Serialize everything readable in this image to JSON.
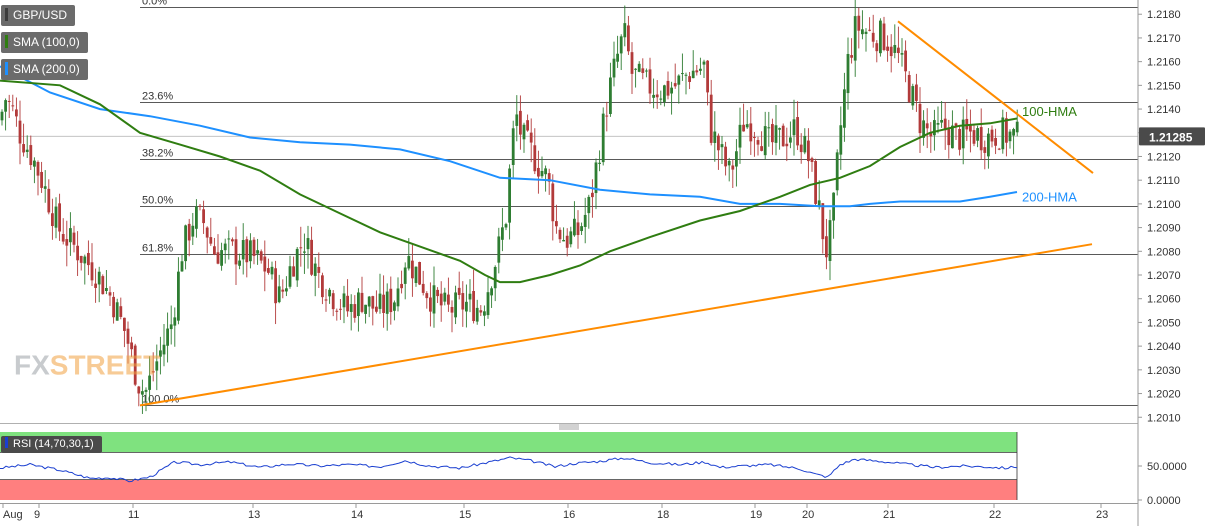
{
  "instrument": "GBP/USD",
  "legend": [
    {
      "label": "GBP/USD",
      "color": "#4a4a4a"
    },
    {
      "label": "SMA (100,0)",
      "color": "#2f7d11"
    },
    {
      "label": "SMA (200,0)",
      "color": "#1e90ff"
    }
  ],
  "last_price": "1.21285",
  "watermark": {
    "fx": "FX",
    "street": "STREET"
  },
  "chart_data": {
    "type": "candlestick",
    "ylim": [
      1.2008,
      1.2186
    ],
    "price_ticks": [
      "1.2180",
      "1.2170",
      "1.2160",
      "1.2150",
      "1.2140",
      "1.2130",
      "1.2120",
      "1.2110",
      "1.2100",
      "1.2090",
      "1.2080",
      "1.2070",
      "1.2060",
      "1.2050",
      "1.2040",
      "1.2030",
      "1.2020",
      "1.2010"
    ],
    "x_ticks": [
      "Aug",
      "9",
      "11",
      "13",
      "14",
      "15",
      "16",
      "18",
      "19",
      "20",
      "21",
      "22",
      "23"
    ],
    "fibonacci": [
      {
        "label": "0.0%",
        "price": 1.2183
      },
      {
        "label": "23.6%",
        "price": 1.2143
      },
      {
        "label": "38.2%",
        "price": 1.2119
      },
      {
        "label": "50.0%",
        "price": 1.2099
      },
      {
        "label": "61.8%",
        "price": 1.2079
      },
      {
        "label": "100.0%",
        "price": 1.2015
      }
    ],
    "annotations": {
      "hma100": "100-HMA",
      "hma200": "200-HMA"
    },
    "close_anchors": [
      [
        0,
        1.2135
      ],
      [
        5,
        1.2145
      ],
      [
        12,
        1.214
      ],
      [
        20,
        1.213
      ],
      [
        32,
        1.212
      ],
      [
        42,
        1.211
      ],
      [
        58,
        1.209
      ],
      [
        78,
        1.208
      ],
      [
        98,
        1.207
      ],
      [
        112,
        1.206
      ],
      [
        126,
        1.2045
      ],
      [
        138,
        1.2025
      ],
      [
        145,
        1.202
      ],
      [
        158,
        1.2035
      ],
      [
        172,
        1.205
      ],
      [
        182,
        1.208
      ],
      [
        194,
        1.2095
      ],
      [
        204,
        1.2092
      ],
      [
        214,
        1.208
      ],
      [
        232,
        1.208
      ],
      [
        252,
        1.2078
      ],
      [
        268,
        1.2072
      ],
      [
        280,
        1.206
      ],
      [
        292,
        1.2075
      ],
      [
        304,
        1.2085
      ],
      [
        318,
        1.207
      ],
      [
        332,
        1.2062
      ],
      [
        348,
        1.2055
      ],
      [
        362,
        1.206
      ],
      [
        378,
        1.2055
      ],
      [
        394,
        1.206
      ],
      [
        406,
        1.2078
      ],
      [
        418,
        1.207
      ],
      [
        432,
        1.206
      ],
      [
        448,
        1.2055
      ],
      [
        465,
        1.2058
      ],
      [
        482,
        1.2056
      ],
      [
        498,
        1.208
      ],
      [
        506,
        1.2095
      ],
      [
        512,
        1.2125
      ],
      [
        516,
        1.2138
      ],
      [
        522,
        1.2128
      ],
      [
        534,
        1.212
      ],
      [
        548,
        1.211
      ],
      [
        556,
        1.209
      ],
      [
        566,
        1.2085
      ],
      [
        578,
        1.2088
      ],
      [
        590,
        1.21
      ],
      [
        600,
        1.2125
      ],
      [
        608,
        1.2145
      ],
      [
        616,
        1.216
      ],
      [
        624,
        1.2172
      ],
      [
        632,
        1.2155
      ],
      [
        646,
        1.215
      ],
      [
        662,
        1.2148
      ],
      [
        676,
        1.215
      ],
      [
        688,
        1.2155
      ],
      [
        704,
        1.2158
      ],
      [
        710,
        1.2132
      ],
      [
        720,
        1.2122
      ],
      [
        730,
        1.2112
      ],
      [
        744,
        1.2135
      ],
      [
        756,
        1.2132
      ],
      [
        770,
        1.2125
      ],
      [
        784,
        1.2128
      ],
      [
        796,
        1.2132
      ],
      [
        808,
        1.212
      ],
      [
        818,
        1.21
      ],
      [
        826,
        1.208
      ],
      [
        832,
        1.209
      ],
      [
        840,
        1.213
      ],
      [
        848,
        1.216
      ],
      [
        856,
        1.2175
      ],
      [
        870,
        1.2172
      ],
      [
        886,
        1.217
      ],
      [
        898,
        1.2162
      ],
      [
        910,
        1.2148
      ],
      [
        920,
        1.2135
      ],
      [
        932,
        1.2128
      ],
      [
        944,
        1.2132
      ],
      [
        958,
        1.2128
      ],
      [
        972,
        1.213
      ],
      [
        986,
        1.2128
      ],
      [
        1000,
        1.213
      ],
      [
        1010,
        1.2129
      ],
      [
        1018,
        1.2128
      ]
    ],
    "hma100": [
      [
        0,
        1.2152
      ],
      [
        60,
        1.215
      ],
      [
        100,
        1.2142
      ],
      [
        140,
        1.213
      ],
      [
        180,
        1.2125
      ],
      [
        220,
        1.212
      ],
      [
        260,
        1.2114
      ],
      [
        300,
        1.2104
      ],
      [
        340,
        1.2096
      ],
      [
        380,
        1.2088
      ],
      [
        420,
        1.2082
      ],
      [
        460,
        1.2076
      ],
      [
        485,
        1.207
      ],
      [
        500,
        1.2067
      ],
      [
        520,
        1.2067
      ],
      [
        550,
        1.207
      ],
      [
        580,
        1.2074
      ],
      [
        610,
        1.208
      ],
      [
        650,
        1.2086
      ],
      [
        700,
        1.2093
      ],
      [
        740,
        1.2097
      ],
      [
        780,
        1.2103
      ],
      [
        810,
        1.2108
      ],
      [
        840,
        1.2111
      ],
      [
        870,
        1.2116
      ],
      [
        900,
        1.2124
      ],
      [
        930,
        1.213
      ],
      [
        960,
        1.2133
      ],
      [
        990,
        1.2134
      ],
      [
        1017,
        1.2136
      ]
    ],
    "hma200": [
      [
        0,
        1.2158
      ],
      [
        50,
        1.2147
      ],
      [
        100,
        1.214
      ],
      [
        150,
        1.2137
      ],
      [
        200,
        1.2133
      ],
      [
        250,
        1.2128
      ],
      [
        300,
        1.2126
      ],
      [
        350,
        1.2125
      ],
      [
        400,
        1.2123
      ],
      [
        450,
        1.2118
      ],
      [
        500,
        1.2111
      ],
      [
        550,
        1.211
      ],
      [
        600,
        1.2106
      ],
      [
        650,
        1.2104
      ],
      [
        700,
        1.2103
      ],
      [
        740,
        1.21
      ],
      [
        780,
        1.21
      ],
      [
        820,
        1.2099
      ],
      [
        850,
        1.2099
      ],
      [
        870,
        1.21
      ],
      [
        900,
        1.2101
      ],
      [
        930,
        1.2101
      ],
      [
        960,
        1.2101
      ],
      [
        990,
        1.2103
      ],
      [
        1017,
        1.2105
      ]
    ],
    "trendlines": [
      {
        "name": "support",
        "color": "#ff8c00",
        "points": [
          [
            140,
            1.2015
          ],
          [
            1092,
            1.2083
          ]
        ]
      },
      {
        "name": "resistance",
        "color": "#ff8c00",
        "points": [
          [
            898,
            1.2177
          ],
          [
            1093,
            1.2113
          ]
        ]
      }
    ]
  },
  "rsi": {
    "label": "RSI (14,70,30,1)",
    "levels": {
      "upper": 70,
      "lower": 30
    },
    "ticks": [
      "50.0000",
      "0.0000"
    ],
    "anchors": [
      [
        0,
        47
      ],
      [
        30,
        52
      ],
      [
        60,
        44
      ],
      [
        90,
        32
      ],
      [
        110,
        33
      ],
      [
        130,
        28
      ],
      [
        150,
        34
      ],
      [
        175,
        56
      ],
      [
        200,
        52
      ],
      [
        230,
        56
      ],
      [
        260,
        48
      ],
      [
        290,
        53
      ],
      [
        320,
        50
      ],
      [
        350,
        52
      ],
      [
        380,
        49
      ],
      [
        405,
        58
      ],
      [
        430,
        50
      ],
      [
        460,
        47
      ],
      [
        490,
        56
      ],
      [
        510,
        62
      ],
      [
        530,
        58
      ],
      [
        555,
        49
      ],
      [
        575,
        54
      ],
      [
        600,
        57
      ],
      [
        625,
        62
      ],
      [
        650,
        55
      ],
      [
        680,
        52
      ],
      [
        705,
        56
      ],
      [
        720,
        48
      ],
      [
        740,
        50
      ],
      [
        770,
        52
      ],
      [
        800,
        46
      ],
      [
        815,
        38
      ],
      [
        828,
        34
      ],
      [
        840,
        52
      ],
      [
        855,
        60
      ],
      [
        880,
        57
      ],
      [
        910,
        52
      ],
      [
        935,
        48
      ],
      [
        960,
        50
      ],
      [
        985,
        49
      ],
      [
        1005,
        47
      ],
      [
        1017,
        49
      ]
    ]
  }
}
